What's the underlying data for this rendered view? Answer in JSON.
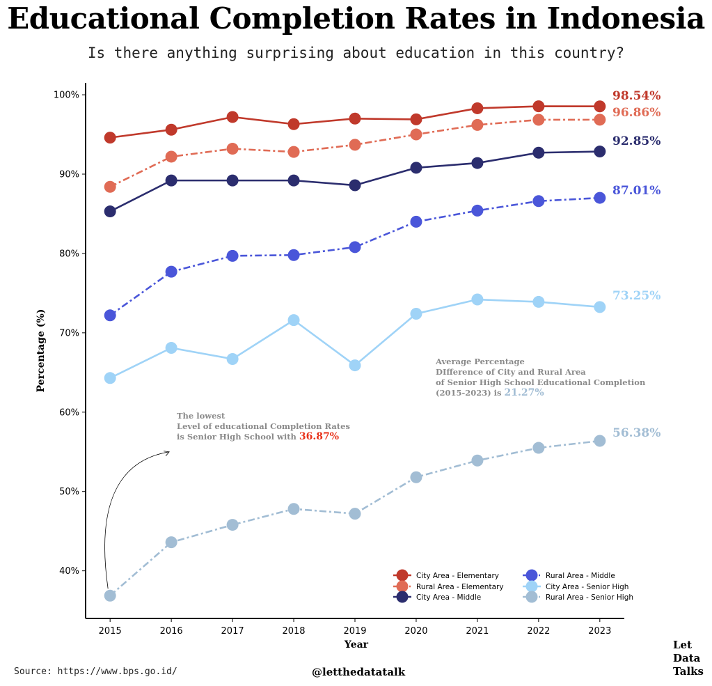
{
  "title": "Educational Completion Rates in Indonesia",
  "subtitle": "Is there anything surprising about education in this country?",
  "source": "Source: https://www.bps.go.id/",
  "handle": "@letthedatatalk",
  "brand": [
    "Let",
    "Data",
    "Talks"
  ],
  "chart_data": {
    "type": "line",
    "xlabel": "Year",
    "ylabel": "Percentage (%)",
    "x": [
      2015,
      2016,
      2017,
      2018,
      2019,
      2020,
      2021,
      2022,
      2023
    ],
    "ylim": [
      34,
      101.5
    ],
    "yticks": [
      40,
      50,
      60,
      70,
      80,
      90,
      100
    ],
    "ytick_suffix": "%",
    "grid": false,
    "legend_position": "bottom-right",
    "series": [
      {
        "name": "City Area - Elementary",
        "color": "#c0392b",
        "style": "solid",
        "values": [
          94.6,
          95.6,
          97.2,
          96.3,
          97.0,
          96.9,
          98.3,
          98.55,
          98.54
        ],
        "end_label": "98.54%"
      },
      {
        "name": "Rural Area - Elementary",
        "color": "#e06b55",
        "style": "dashdot",
        "values": [
          88.4,
          92.2,
          93.2,
          92.8,
          93.7,
          95.0,
          96.2,
          96.85,
          96.86
        ],
        "end_label": "96.86%"
      },
      {
        "name": "City Area - Middle",
        "color": "#2b2d6e",
        "style": "solid",
        "values": [
          85.3,
          89.2,
          89.2,
          89.2,
          88.6,
          90.8,
          91.4,
          92.7,
          92.85
        ],
        "end_label": "92.85%"
      },
      {
        "name": "Rural Area - Middle",
        "color": "#4a56d9",
        "style": "dashdot",
        "values": [
          72.2,
          77.7,
          79.7,
          79.8,
          80.8,
          84.0,
          85.4,
          86.6,
          87.01
        ],
        "end_label": "87.01%"
      },
      {
        "name": "City Area - Senior High",
        "color": "#9fd3f7",
        "style": "solid",
        "values": [
          64.3,
          68.1,
          66.7,
          71.6,
          65.9,
          72.4,
          74.2,
          73.9,
          73.25
        ],
        "end_label": "73.25%"
      },
      {
        "name": "Rural Area - Senior High",
        "color": "#a2bdd4",
        "style": "dashdot",
        "values": [
          36.87,
          43.6,
          45.8,
          47.8,
          47.2,
          51.8,
          53.9,
          55.5,
          56.38
        ],
        "end_label": "56.38%"
      }
    ],
    "annotations": [
      {
        "lines": [
          "The lowest",
          "Level of educational Completion Rates",
          "is Senior High School with "
        ],
        "highlight": "36.87%",
        "highlight_color": "#e8321a",
        "arrow_from": [
          2015,
          36.87
        ],
        "arrow_to": [
          2016,
          55.0
        ]
      },
      {
        "lines": [
          "Average Percentage",
          "DIfference of City and Rural Area",
          "of Senior High School Educational Completion",
          "(2015-2023) is "
        ],
        "highlight": "21.27%",
        "highlight_color": "#a2bdd4"
      }
    ]
  }
}
